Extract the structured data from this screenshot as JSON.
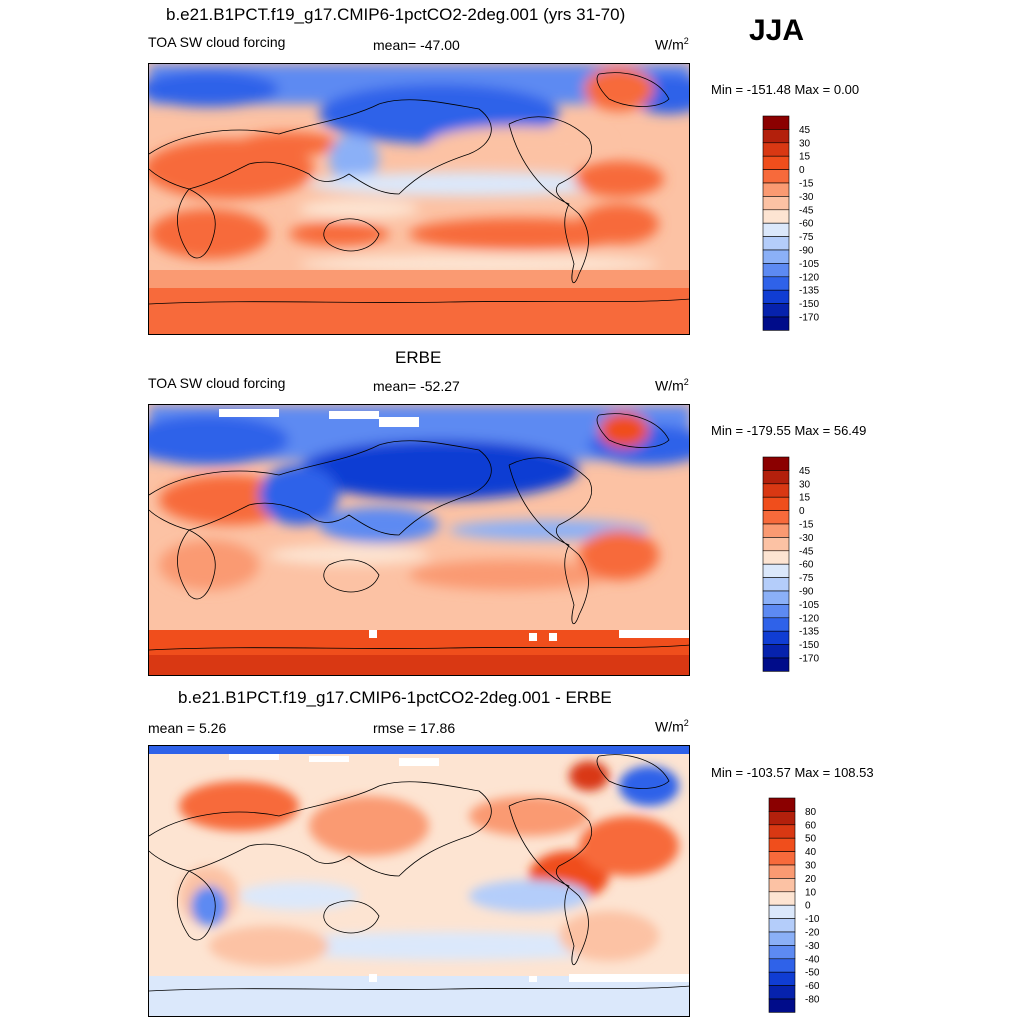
{
  "season": "JJA",
  "panels": [
    {
      "title": "b.e21.B1PCT.f19_g17.CMIP6-1pctCO2-2deg.001 (yrs 31-70)",
      "left_label": "TOA SW cloud forcing",
      "center_label": "mean= -47.00",
      "units": "W/m",
      "units_sup": "2",
      "minmax": "Min = -151.48 Max =    0.00",
      "colorbar": {
        "levels": [
          "45",
          "30",
          "15",
          "0",
          "-15",
          "-30",
          "-45",
          "-60",
          "-75",
          "-90",
          "-105",
          "-120",
          "-135",
          "-150",
          "-170"
        ],
        "colors": [
          "#8b0000",
          "#b3200c",
          "#d93813",
          "#f04e1c",
          "#f76a3b",
          "#fa9a72",
          "#fcc2a4",
          "#fde4d2",
          "#dbe8fb",
          "#b4cdfa",
          "#8bb0f7",
          "#5d8af2",
          "#2f62e9",
          "#103dd3",
          "#0622ad",
          "#000c8a"
        ]
      }
    },
    {
      "title": "ERBE",
      "left_label": "TOA SW cloud forcing",
      "center_label": "mean= -52.27",
      "units": "W/m",
      "units_sup": "2",
      "minmax": "Min = -179.55 Max =  56.49",
      "colorbar": {
        "levels": [
          "45",
          "30",
          "15",
          "0",
          "-15",
          "-30",
          "-45",
          "-60",
          "-75",
          "-90",
          "-105",
          "-120",
          "-135",
          "-150",
          "-170"
        ],
        "colors": [
          "#8b0000",
          "#b3200c",
          "#d93813",
          "#f04e1c",
          "#f76a3b",
          "#fa9a72",
          "#fcc2a4",
          "#fde4d2",
          "#dbe8fb",
          "#b4cdfa",
          "#8bb0f7",
          "#5d8af2",
          "#2f62e9",
          "#103dd3",
          "#0622ad",
          "#000c8a"
        ]
      }
    },
    {
      "title": "b.e21.B1PCT.f19_g17.CMIP6-1pctCO2-2deg.001 - ERBE",
      "left_label": "mean =   5.26",
      "center_label": "rmse =  17.86",
      "units": "W/m",
      "units_sup": "2",
      "minmax": "Min = -103.57 Max = 108.53",
      "colorbar": {
        "levels": [
          "80",
          "60",
          "50",
          "40",
          "30",
          "20",
          "10",
          "0",
          "-10",
          "-20",
          "-30",
          "-40",
          "-50",
          "-60",
          "-80"
        ],
        "colors": [
          "#8b0000",
          "#b3200c",
          "#d93813",
          "#f04e1c",
          "#f76a3b",
          "#fa9a72",
          "#fcc2a4",
          "#fde4d2",
          "#dbe8fb",
          "#b4cdfa",
          "#8bb0f7",
          "#5d8af2",
          "#2f62e9",
          "#103dd3",
          "#0622ad",
          "#000c8a"
        ]
      }
    }
  ]
}
